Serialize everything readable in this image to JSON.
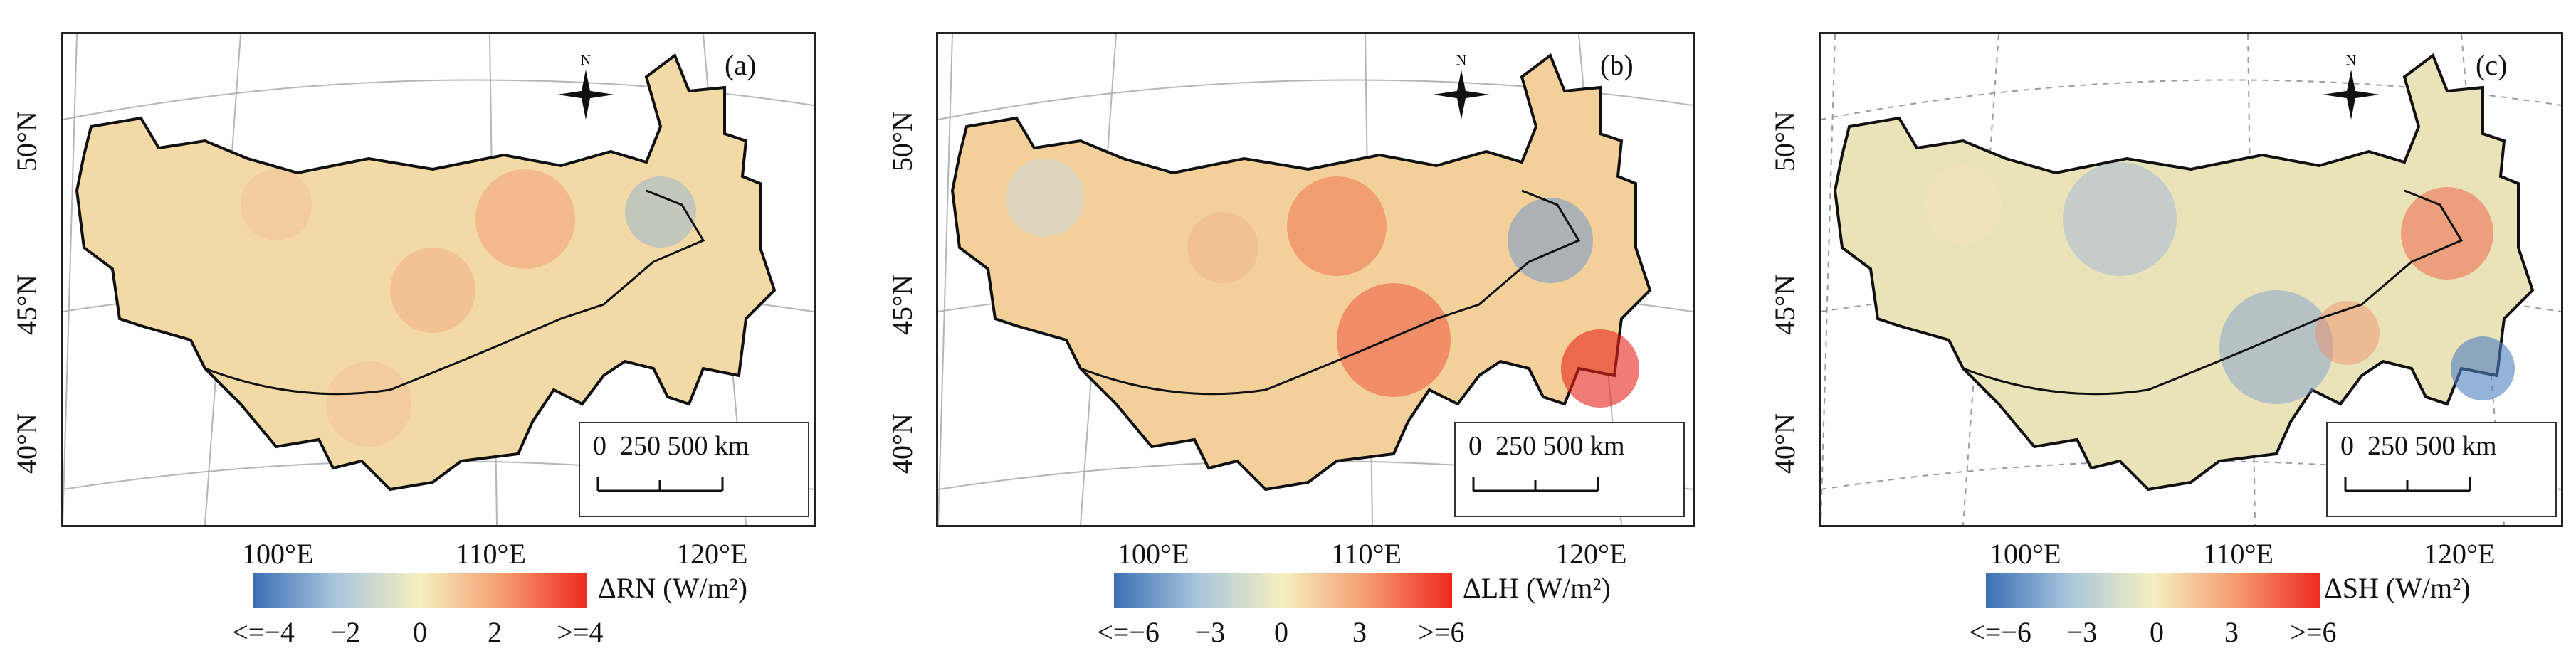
{
  "panels": [
    {
      "label": "(a)",
      "lat_labels": [
        "50°N",
        "45°N",
        "40°N"
      ],
      "lon_labels": [
        "100°E",
        "110°E",
        "120°E"
      ],
      "north_letter": "N",
      "scale": {
        "zero": "0",
        "mid": "250",
        "end": "500",
        "unit": "km"
      },
      "colorbar": {
        "variable": "ΔRN",
        "unit": "(W/m²)",
        "ticks": [
          "<=−4",
          "−2",
          "0",
          "2",
          ">=4"
        ],
        "colors": [
          "#3b6fb6",
          "#a9c6dc",
          "#f5f0c0",
          "#f59a6e",
          "#ee2a1f"
        ]
      }
    },
    {
      "label": "(b)",
      "lat_labels": [
        "50°N",
        "45°N",
        "40°N"
      ],
      "lon_labels": [
        "100°E",
        "110°E",
        "120°E"
      ],
      "north_letter": "N",
      "scale": {
        "zero": "0",
        "mid": "250",
        "end": "500",
        "unit": "km"
      },
      "colorbar": {
        "variable": "ΔLH",
        "unit": "(W/m²)",
        "ticks": [
          "<=−6",
          "−3",
          "0",
          "3",
          ">=6"
        ],
        "colors": [
          "#3b6fb6",
          "#a9c6dc",
          "#f5f0c0",
          "#f59a6e",
          "#ee2a1f"
        ]
      }
    },
    {
      "label": "(c)",
      "lat_labels": [
        "50°N",
        "45°N",
        "40°N"
      ],
      "lon_labels": [
        "100°E",
        "110°E",
        "120°E"
      ],
      "north_letter": "N",
      "scale": {
        "zero": "0",
        "mid": "250",
        "end": "500",
        "unit": "km"
      },
      "colorbar": {
        "variable": "ΔSH",
        "unit": "(W/m²)",
        "ticks": [
          "<=−6",
          "−3",
          "0",
          "3",
          ">=6"
        ],
        "colors": [
          "#3b6fb6",
          "#a9c6dc",
          "#f5f0c0",
          "#f59a6e",
          "#ee2a1f"
        ]
      }
    }
  ]
}
